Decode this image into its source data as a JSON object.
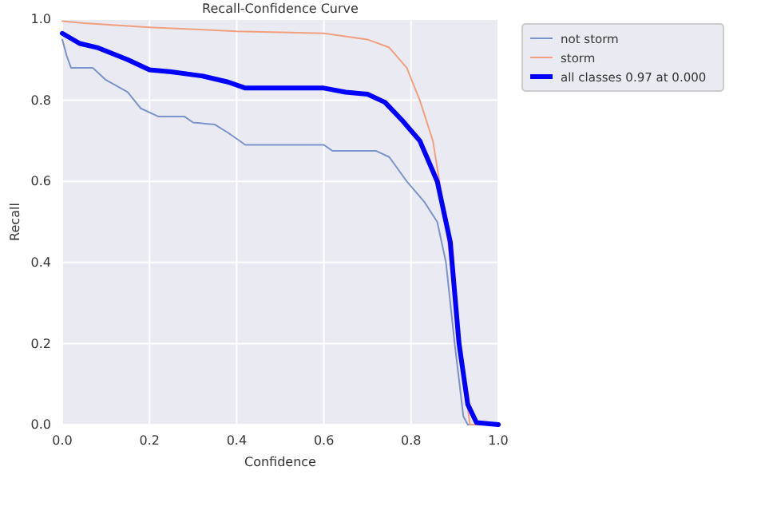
{
  "chart_data": {
    "type": "line",
    "title": "Recall-Confidence Curve",
    "xlabel": "Confidence",
    "ylabel": "Recall",
    "xlim": [
      0,
      1
    ],
    "ylim": [
      0,
      1
    ],
    "xticks": [
      {
        "value": 0,
        "label": "0.0"
      },
      0.2,
      0.4,
      0.6,
      0.8,
      {
        "value": 1,
        "label": "1.0"
      }
    ],
    "yticks": [
      {
        "value": 0,
        "label": "0.0"
      },
      0.2,
      0.4,
      0.6,
      0.8,
      {
        "value": 1,
        "label": "1.0"
      }
    ],
    "grid": true,
    "legend": "top right",
    "line_style": "solid",
    "series": [
      {
        "name": "not storm",
        "color": "#7b93c8",
        "x": [
          0,
          0.01,
          0.02,
          0.07,
          0.1,
          0.15,
          0.18,
          0.22,
          0.28,
          0.3,
          0.35,
          0.38,
          0.42,
          0.6,
          0.62,
          0.72,
          0.75,
          0.79,
          0.83,
          0.86,
          0.88,
          0.9,
          0.92,
          0.93,
          1
        ],
        "values": [
          0.95,
          0.91,
          0.88,
          0.88,
          0.85,
          0.82,
          0.78,
          0.76,
          0.76,
          0.745,
          0.74,
          0.72,
          0.69,
          0.69,
          0.675,
          0.675,
          0.66,
          0.6,
          0.55,
          0.5,
          0.4,
          0.2,
          0.02,
          0,
          0
        ]
      },
      {
        "name": "storm",
        "color": "#f0a07e",
        "x": [
          0,
          0.05,
          0.2,
          0.4,
          0.6,
          0.7,
          0.75,
          0.79,
          0.82,
          0.85,
          0.88,
          0.91,
          0.935,
          1
        ],
        "values": [
          0.995,
          0.99,
          0.98,
          0.97,
          0.965,
          0.95,
          0.93,
          0.88,
          0.8,
          0.7,
          0.5,
          0.2,
          0,
          0
        ]
      },
      {
        "name": "all classes 0.97 at 0.000",
        "color": "#0000ff",
        "x": [
          0,
          0.04,
          0.08,
          0.15,
          0.2,
          0.25,
          0.32,
          0.38,
          0.42,
          0.6,
          0.65,
          0.7,
          0.74,
          0.78,
          0.82,
          0.86,
          0.89,
          0.91,
          0.93,
          0.95,
          1
        ],
        "values": [
          0.965,
          0.94,
          0.93,
          0.9,
          0.875,
          0.87,
          0.86,
          0.845,
          0.83,
          0.83,
          0.82,
          0.815,
          0.795,
          0.75,
          0.7,
          0.6,
          0.45,
          0.2,
          0.05,
          0.005,
          0
        ]
      }
    ]
  }
}
